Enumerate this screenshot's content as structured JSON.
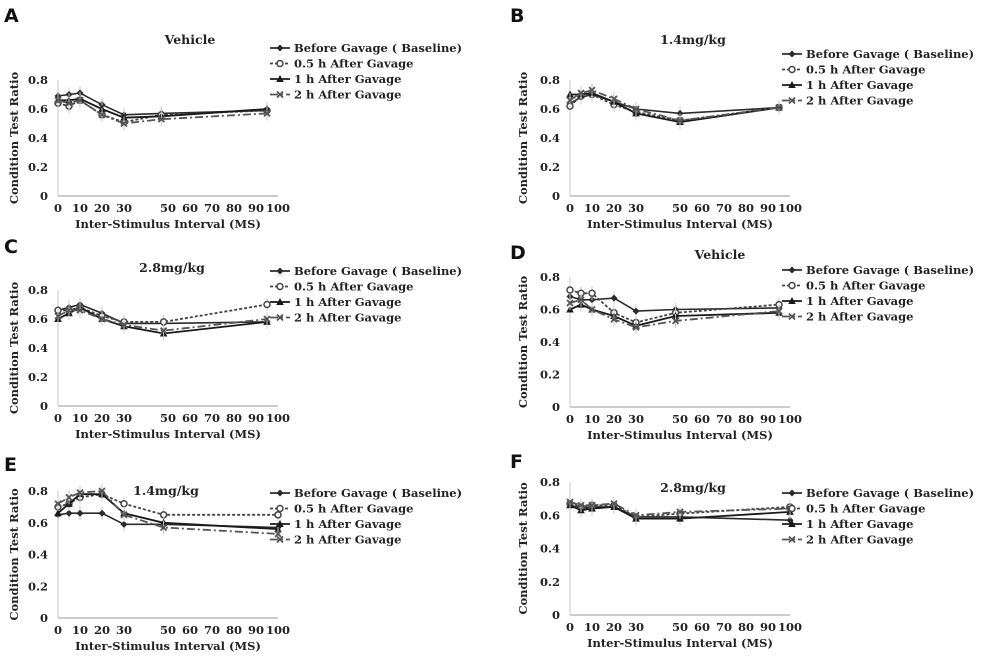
{
  "figure": {
    "legend_labels": [
      "Before Gavage ( Baseline)",
      "0.5 h After Gavage",
      "1 h After Gavage",
      "2 h After Gavage"
    ],
    "ylabel": "Condition Test Ratio",
    "xlabel": "Inter-Stimulus Interval (MS)",
    "x_ticks": [
      "0",
      "10",
      "20",
      "30",
      "40",
      "50",
      "60",
      "70",
      "80",
      "90",
      "100"
    ],
    "x_tick_values": [
      0,
      10,
      20,
      30,
      40,
      50,
      60,
      70,
      80,
      90,
      100
    ],
    "y_ticks": [
      "0",
      "0.2",
      "0.4",
      "0.6",
      "0.8"
    ],
    "y_tick_values": [
      0,
      0.2,
      0.4,
      0.6,
      0.8
    ],
    "series_colors": [
      "#2b2b2b",
      "#444444",
      "#1a1a1a",
      "#555555"
    ]
  },
  "chart_data": [
    {
      "panel": "A",
      "type": "line",
      "title": "Vehicle",
      "xlabel": "Inter-Stimulus Interval (MS)",
      "ylabel": "Condition Test Ratio",
      "xlim": [
        0,
        100
      ],
      "ylim": [
        0,
        0.8
      ],
      "grid": false,
      "legend": "right",
      "x": [
        0,
        5,
        10,
        20,
        30,
        47,
        95
      ],
      "series": [
        {
          "name": "Before Gavage ( Baseline)",
          "values": [
            0.69,
            0.7,
            0.71,
            0.63,
            0.56,
            0.57,
            0.59
          ]
        },
        {
          "name": "0.5 h After Gavage",
          "values": [
            0.64,
            0.62,
            0.66,
            0.56,
            0.51,
            0.56,
            0.59
          ]
        },
        {
          "name": "1 h After Gavage",
          "values": [
            0.66,
            0.66,
            0.67,
            0.6,
            0.54,
            0.55,
            0.6
          ]
        },
        {
          "name": "2 h After Gavage",
          "values": [
            0.66,
            0.64,
            0.66,
            0.56,
            0.5,
            0.53,
            0.57
          ]
        }
      ]
    },
    {
      "panel": "B",
      "type": "line",
      "title": "1.4mg/kg",
      "xlabel": "Inter-Stimulus Interval (MS)",
      "ylabel": "Condition Test Ratio",
      "xlim": [
        0,
        100
      ],
      "ylim": [
        0,
        0.8
      ],
      "grid": false,
      "legend": "right",
      "x": [
        0,
        5,
        10,
        20,
        30,
        50,
        95
      ],
      "series": [
        {
          "name": "Before Gavage ( Baseline)",
          "values": [
            0.64,
            0.68,
            0.7,
            0.65,
            0.6,
            0.57,
            0.61
          ]
        },
        {
          "name": "0.5 h After Gavage",
          "values": [
            0.62,
            0.69,
            0.7,
            0.63,
            0.58,
            0.52,
            0.61
          ]
        },
        {
          "name": "1 h After Gavage",
          "values": [
            0.7,
            0.7,
            0.71,
            0.65,
            0.57,
            0.51,
            0.61
          ]
        },
        {
          "name": "2 h After Gavage",
          "values": [
            0.66,
            0.71,
            0.73,
            0.67,
            0.6,
            0.52,
            0.61
          ]
        }
      ]
    },
    {
      "panel": "C",
      "type": "line",
      "title": "2.8mg/kg",
      "xlabel": "Inter-Stimulus Interval (MS)",
      "ylabel": "Condition Test Ratio",
      "xlim": [
        0,
        100
      ],
      "ylim": [
        0,
        0.8
      ],
      "grid": false,
      "legend": "right",
      "x": [
        0,
        5,
        10,
        20,
        30,
        48,
        95
      ],
      "series": [
        {
          "name": "Before Gavage ( Baseline)",
          "values": [
            0.66,
            0.68,
            0.7,
            0.64,
            0.57,
            0.57,
            0.58
          ]
        },
        {
          "name": "0.5 h After Gavage",
          "values": [
            0.66,
            0.66,
            0.68,
            0.62,
            0.58,
            0.58,
            0.7
          ]
        },
        {
          "name": "1 h After Gavage",
          "values": [
            0.6,
            0.64,
            0.68,
            0.6,
            0.55,
            0.5,
            0.58
          ]
        },
        {
          "name": "2 h After Gavage",
          "values": [
            0.62,
            0.66,
            0.66,
            0.6,
            0.56,
            0.52,
            0.6
          ]
        }
      ]
    },
    {
      "panel": "D",
      "type": "line",
      "title": "Vehicle",
      "xlabel": "Inter-Stimulus Interval (MS)",
      "ylabel": "Condition Test Ratio",
      "xlim": [
        0,
        100
      ],
      "ylim": [
        0,
        0.8
      ],
      "grid": false,
      "legend": "right",
      "x": [
        0,
        5,
        10,
        20,
        30,
        48,
        95
      ],
      "series": [
        {
          "name": "Before Gavage ( Baseline)",
          "values": [
            0.68,
            0.66,
            0.66,
            0.67,
            0.59,
            0.6,
            0.61
          ]
        },
        {
          "name": "0.5 h After Gavage",
          "values": [
            0.72,
            0.7,
            0.7,
            0.58,
            0.52,
            0.58,
            0.63
          ]
        },
        {
          "name": "1 h After Gavage",
          "values": [
            0.6,
            0.63,
            0.6,
            0.56,
            0.5,
            0.56,
            0.58
          ]
        },
        {
          "name": "2 h After Gavage",
          "values": [
            0.64,
            0.66,
            0.6,
            0.54,
            0.49,
            0.53,
            0.59
          ]
        }
      ]
    },
    {
      "panel": "E",
      "type": "line",
      "title": "1.4mg/kg",
      "xlabel": "Inter-Stimulus Interval (MS)",
      "ylabel": "Condition Test Ratio",
      "xlim": [
        0,
        100
      ],
      "ylim": [
        0,
        0.8
      ],
      "grid": false,
      "legend": "right",
      "x": [
        0,
        5,
        10,
        20,
        30,
        48,
        100
      ],
      "series": [
        {
          "name": "Before Gavage ( Baseline)",
          "values": [
            0.65,
            0.66,
            0.66,
            0.66,
            0.59,
            0.59,
            0.57
          ]
        },
        {
          "name": "0.5 h After Gavage",
          "values": [
            0.7,
            0.72,
            0.76,
            0.78,
            0.72,
            0.65,
            0.65
          ]
        },
        {
          "name": "1 h After Gavage",
          "values": [
            0.66,
            0.72,
            0.78,
            0.78,
            0.66,
            0.6,
            0.56
          ]
        },
        {
          "name": "2 h After Gavage",
          "values": [
            0.72,
            0.76,
            0.79,
            0.8,
            0.65,
            0.57,
            0.53
          ]
        }
      ]
    },
    {
      "panel": "F",
      "type": "line",
      "title": "2.8mg/kg",
      "xlabel": "Inter-Stimulus Interval (MS)",
      "ylabel": "Condition Test Ratio",
      "xlim": [
        0,
        100
      ],
      "ylim": [
        0,
        0.8
      ],
      "grid": false,
      "legend": "right",
      "x": [
        0,
        5,
        10,
        20,
        30,
        50,
        100
      ],
      "series": [
        {
          "name": "Before Gavage ( Baseline)",
          "values": [
            0.66,
            0.64,
            0.65,
            0.65,
            0.59,
            0.59,
            0.57
          ]
        },
        {
          "name": "0.5 h After Gavage",
          "values": [
            0.67,
            0.65,
            0.66,
            0.66,
            0.59,
            0.61,
            0.65
          ]
        },
        {
          "name": "1 h After Gavage",
          "values": [
            0.66,
            0.63,
            0.64,
            0.65,
            0.58,
            0.58,
            0.62
          ]
        },
        {
          "name": "2 h After Gavage",
          "values": [
            0.68,
            0.66,
            0.66,
            0.67,
            0.6,
            0.62,
            0.64
          ]
        }
      ]
    }
  ]
}
